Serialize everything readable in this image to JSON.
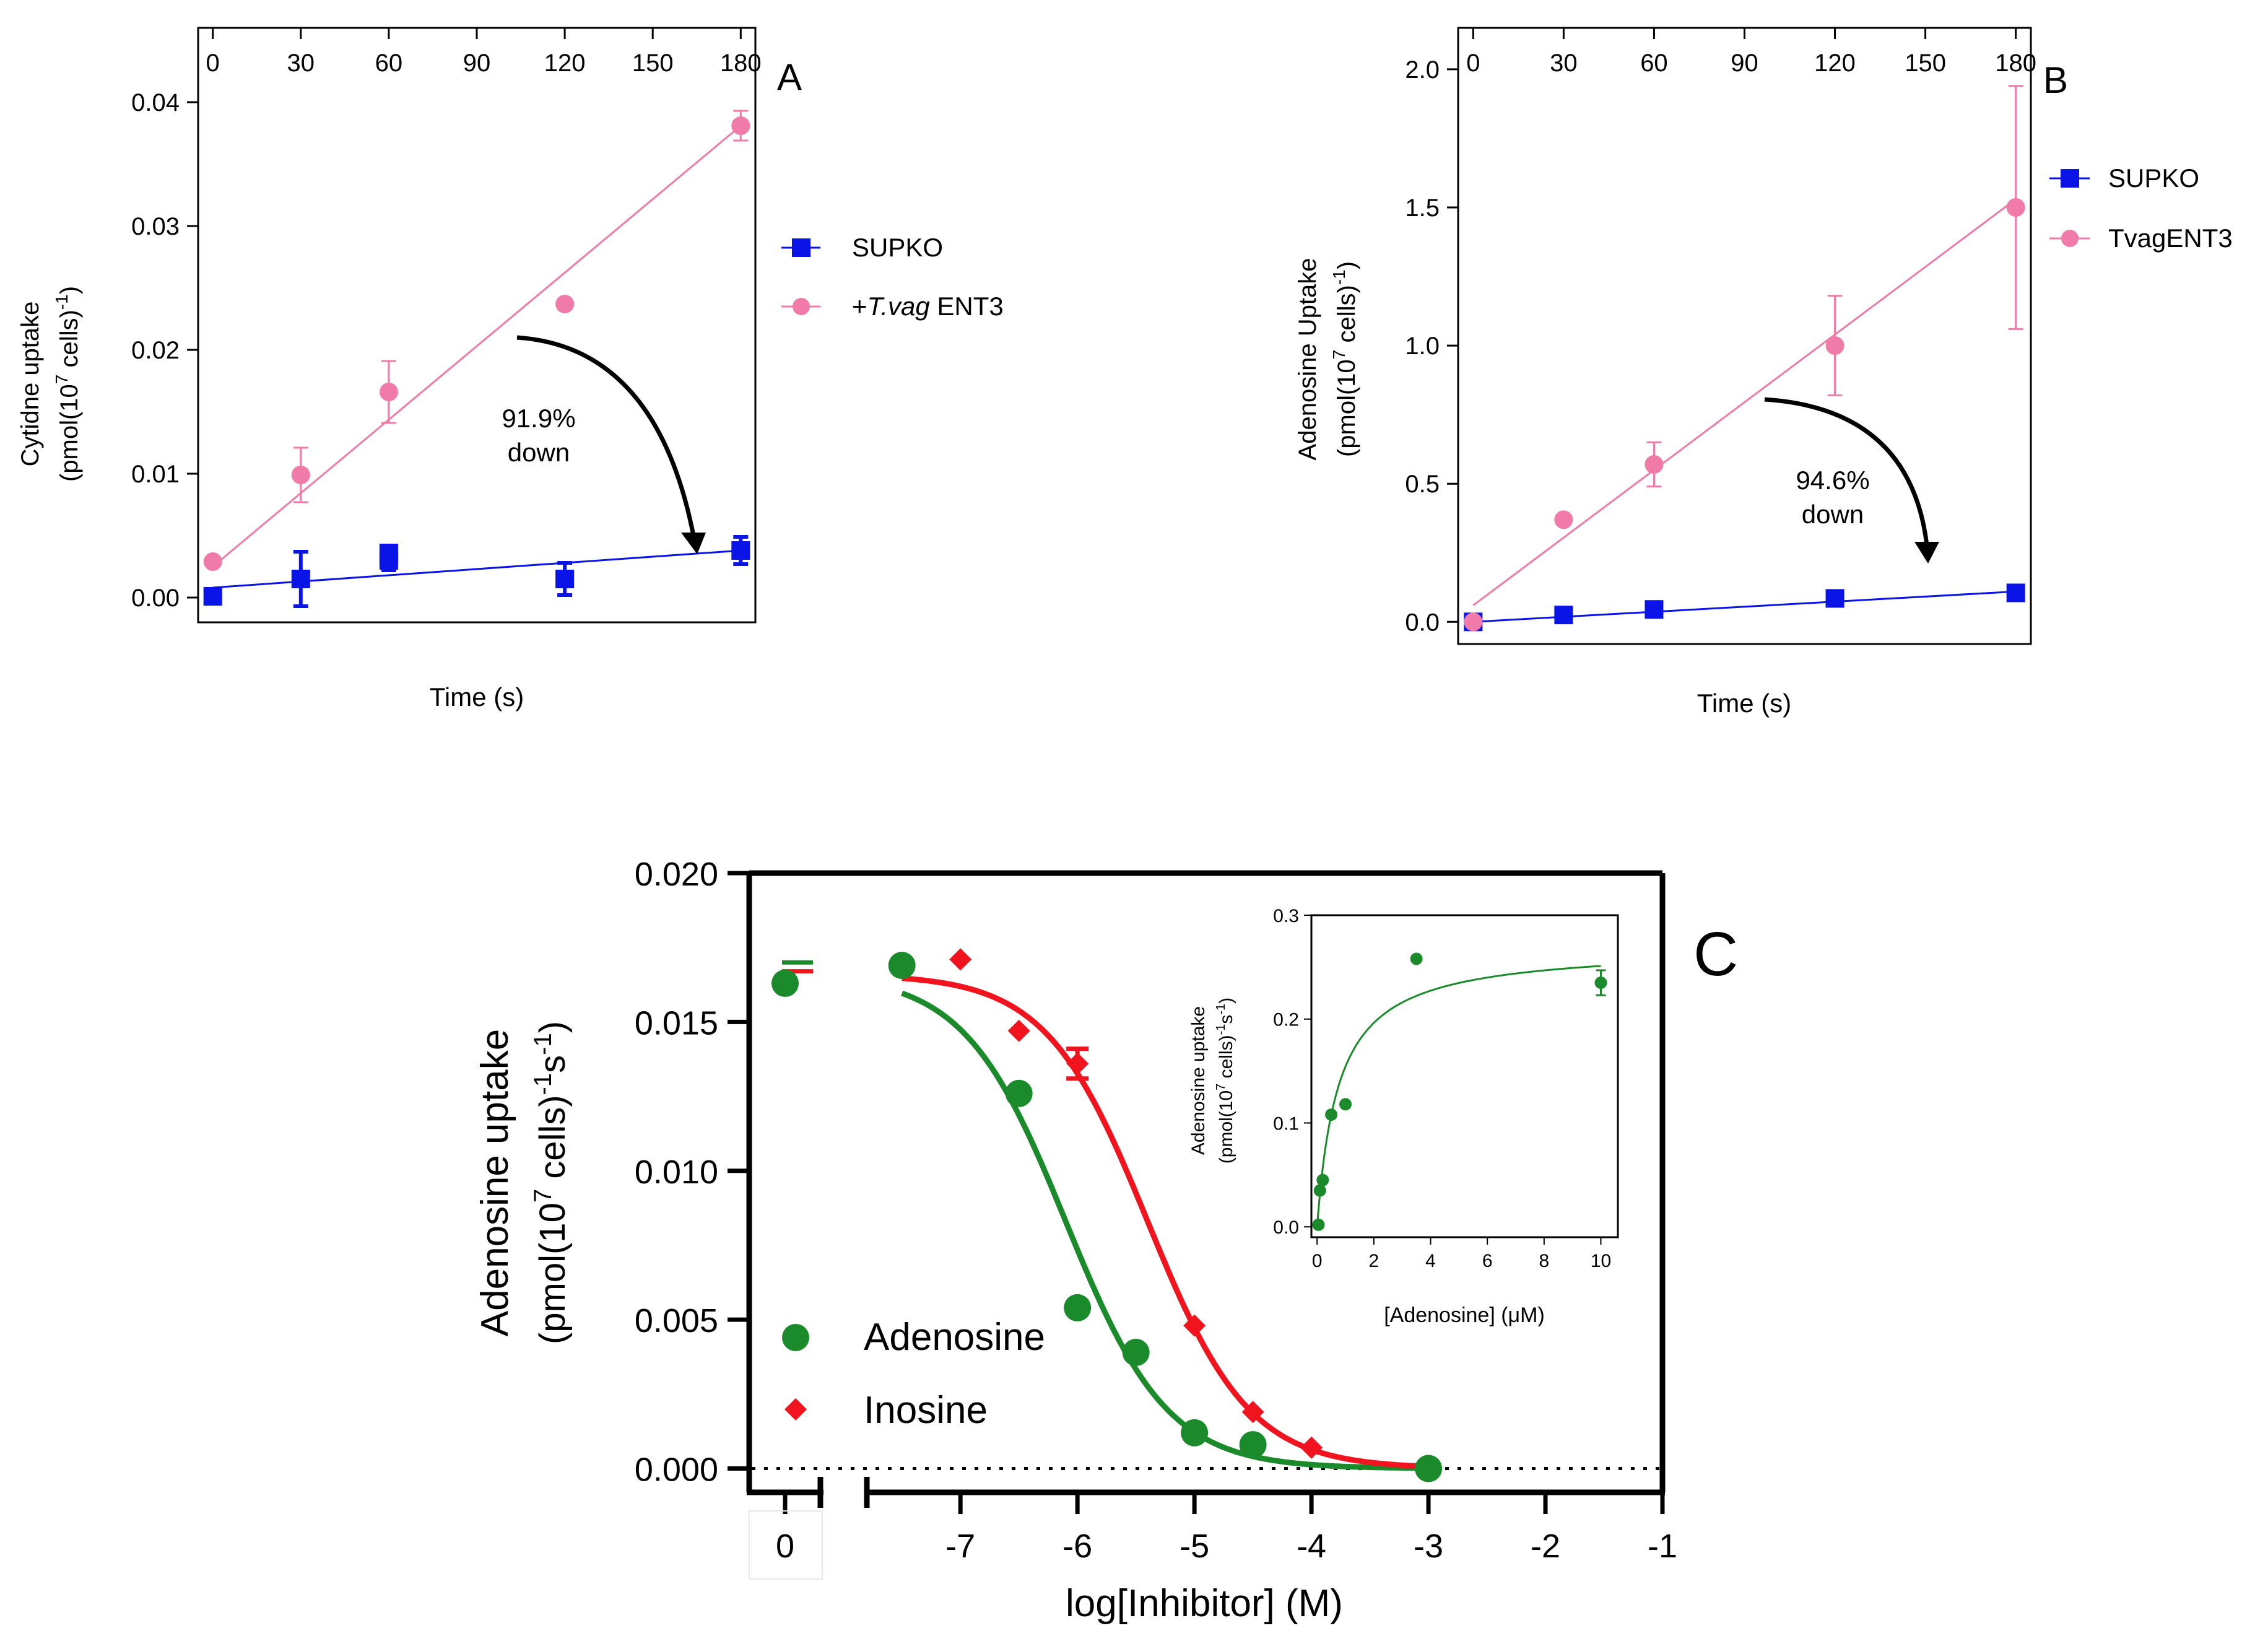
{
  "figure": {
    "panel_a_letter": "A",
    "panel_b_letter": "B",
    "panel_c_letter": "C"
  },
  "colors": {
    "blue": "#0a14e6",
    "pink": "#f07aa8",
    "green": "#1a8a2a",
    "red": "#f0141e",
    "axis": "#000000"
  },
  "chart_data": [
    {
      "id": "A",
      "type": "scatter",
      "title": "",
      "xlabel": "Time (s)",
      "ylabel_line1": "Cytidne uptake",
      "ylabel_line2": "(pmol(10",
      "ylabel_exp1": "7",
      "ylabel_mid": " cells)",
      "ylabel_exp2": "-1",
      "ylabel_end": ")",
      "xlim": [
        -5,
        185
      ],
      "ylim": [
        -0.002,
        0.046
      ],
      "xticks": [
        0,
        30,
        60,
        90,
        120,
        150,
        180
      ],
      "yticks": [
        0.0,
        0.01,
        0.02,
        0.03,
        0.04
      ],
      "ytick_labels": [
        "0.00",
        "0.01",
        "0.02",
        "0.03",
        "0.04"
      ],
      "series": [
        {
          "name": "SUPKO",
          "color": "blue",
          "marker": "square",
          "x": [
            0,
            30,
            60,
            60,
            120,
            180
          ],
          "y": [
            0.0001,
            0.0015,
            0.003,
            0.0036,
            0.0015,
            0.0038
          ],
          "err": [
            0.0002,
            0.0022,
            0.0008,
            0.0004,
            0.0013,
            0.0011
          ],
          "fit": [
            0.0008,
            0.0038
          ]
        },
        {
          "name": "+",
          "name_italic": "T.vag",
          "name_end": " ENT3",
          "color": "pink",
          "marker": "circle",
          "x": [
            0,
            30,
            60,
            120,
            180
          ],
          "y": [
            0.0029,
            0.0099,
            0.0166,
            0.0237,
            0.0381
          ],
          "err": [
            0.0002,
            0.0022,
            0.0025,
            0.0003,
            0.0012
          ],
          "fit": [
            0.0025,
            0.0381
          ]
        }
      ],
      "annotation": {
        "line1": "91.9%",
        "line2": "down"
      }
    },
    {
      "id": "B",
      "type": "scatter",
      "title": "",
      "xlabel": "Time (s)",
      "ylabel_line1": "Adenosine Uptake",
      "ylabel_line2": "(pmol(10",
      "ylabel_exp1": "7",
      "ylabel_mid": " cells)",
      "ylabel_exp2": "-1",
      "ylabel_end": ")",
      "xlim": [
        -5,
        185
      ],
      "ylim": [
        -0.08,
        2.15
      ],
      "xticks": [
        0,
        30,
        60,
        90,
        120,
        150,
        180
      ],
      "yticks": [
        0.0,
        0.5,
        1.0,
        1.5,
        2.0
      ],
      "ytick_labels": [
        "0.0",
        "0.5",
        "1.0",
        "1.5",
        "2.0"
      ],
      "series": [
        {
          "name": "SUPKO",
          "color": "blue",
          "marker": "square",
          "x": [
            0,
            30,
            60,
            120,
            180
          ],
          "y": [
            0.0,
            0.025,
            0.045,
            0.085,
            0.105
          ],
          "err": [
            0,
            0,
            0,
            0,
            0
          ],
          "fit": [
            0.0,
            0.11
          ]
        },
        {
          "name": "TvagENT3",
          "color": "pink",
          "marker": "circle",
          "x": [
            0,
            30,
            60,
            120,
            180
          ],
          "y": [
            0.0,
            0.37,
            0.57,
            1.0,
            1.5
          ],
          "err": [
            0,
            0,
            0.08,
            0.18,
            0.44
          ],
          "fit": [
            0.06,
            1.53
          ]
        }
      ],
      "annotation": {
        "line1": "94.6%",
        "line2": "down"
      }
    },
    {
      "id": "C",
      "type": "scatter",
      "title": "",
      "xlabel": "log[Inhibitor] (M)",
      "ylabel_line1": "Adenosine uptake",
      "ylabel_line2": "(pmol(10",
      "ylabel_exp1": "7",
      "ylabel_mid": " cells)",
      "ylabel_exp2": "-1",
      "ylabel_mid2": "s",
      "ylabel_end": ")",
      "xlim": [
        -7.8,
        -1.0
      ],
      "ylim": [
        -0.0008,
        0.02
      ],
      "xticks": [
        -7,
        -6,
        -5,
        -4,
        -3,
        -2,
        -1
      ],
      "xtick_labels": [
        "-7",
        "-6",
        "-5",
        "-4",
        "-3",
        "-2",
        "-1"
      ],
      "zero_tick_label": "0",
      "yticks": [
        0.0,
        0.005,
        0.01,
        0.015,
        0.02
      ],
      "ytick_labels": [
        "0.000",
        "0.005",
        "0.010",
        "0.015",
        "0.020"
      ],
      "series": [
        {
          "name": "Adenosine",
          "color": "green",
          "marker": "circle",
          "x": [
            -7.5,
            -6.5,
            -6.0,
            -5.5,
            -5.0,
            -4.5,
            -3.0
          ],
          "y": [
            0.0169,
            0.0126,
            0.0054,
            0.0039,
            0.0012,
            0.0008,
            0.0
          ],
          "control": 0.0163,
          "control_cap": 0.017,
          "fit": {
            "top": 0.0166,
            "bottom": 0.0,
            "logIC50": -6.1,
            "hill": 1.0
          }
        },
        {
          "name": "Inosine",
          "color": "red",
          "marker": "diamond",
          "x": [
            -7.0,
            -6.5,
            -6.0,
            -5.0,
            -4.5,
            -4.0
          ],
          "y": [
            0.0171,
            0.0147,
            0.0136,
            0.0048,
            0.0019,
            0.0007
          ],
          "err": [
            0,
            0,
            0.0005,
            0,
            0,
            0
          ],
          "control_cap": 0.0167,
          "fit": {
            "top": 0.0166,
            "bottom": 0.0,
            "logIC50": -5.4,
            "hill": 1.0
          }
        }
      ],
      "inset": {
        "type": "scatter",
        "xlabel": "[Adenosine] (μM)",
        "ylabel_line1": "Adenosine uptake",
        "ylabel_line2": "(pmol(10",
        "ylabel_exp1": "7",
        "ylabel_mid": " cells)",
        "ylabel_exp2": "-1",
        "ylabel_mid2": "s",
        "ylabel_end": ")",
        "xlim": [
          -0.2,
          10.6
        ],
        "ylim": [
          -0.01,
          0.3
        ],
        "xticks": [
          0,
          2,
          4,
          6,
          8,
          10
        ],
        "yticks": [
          0.0,
          0.1,
          0.2,
          0.3
        ],
        "ytick_labels": [
          "0.0",
          "0.1",
          "0.2",
          "0.3"
        ],
        "x": [
          0.05,
          0.1,
          0.2,
          0.5,
          1.0,
          3.5,
          10.0
        ],
        "y": [
          0.002,
          0.035,
          0.045,
          0.108,
          0.118,
          0.258,
          0.235
        ],
        "err": [
          0,
          0,
          0,
          0,
          0,
          0,
          0.012
        ],
        "fit": {
          "vmax": 0.27,
          "km": 0.75
        }
      }
    }
  ]
}
